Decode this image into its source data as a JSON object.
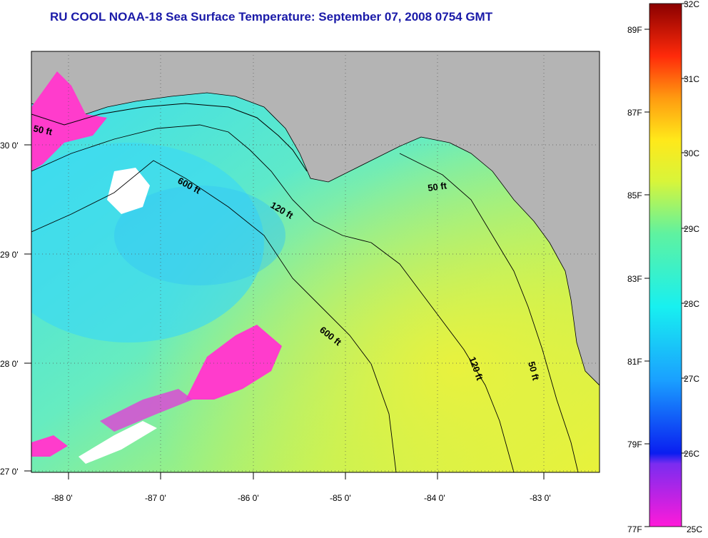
{
  "title": "RU COOL  NOAA-18  Sea Surface Temperature:  September 07, 2008 0754 GMT",
  "map": {
    "lon_ticks": [
      "-88 0'",
      "-87 0'",
      "-86 0'",
      "-85 0'",
      "-84 0'",
      "-83 0'"
    ],
    "lat_ticks": [
      "30 0'",
      "29 0'",
      "28 0'",
      "27 0'"
    ],
    "contour_labels": [
      "50 ft",
      "600 ft",
      "120 ft",
      "50 ft",
      "600 ft",
      "120 ft",
      "50 ft"
    ],
    "colors": {
      "land": "#b4b4b4",
      "warm_water": "#c8f25a",
      "mid_water": "#7af0a0",
      "cool_water": "#32dcf0",
      "cold_patch": "#ff3ccc",
      "cloud": "#ffffff"
    }
  },
  "colorbar": {
    "celsius_labels": [
      "32C",
      "31C",
      "30C",
      "29C",
      "28C",
      "27C",
      "26C",
      "25C"
    ],
    "fahrenheit_labels": [
      "89F",
      "87F",
      "85F",
      "83F",
      "81F",
      "79F",
      "77F"
    ]
  }
}
